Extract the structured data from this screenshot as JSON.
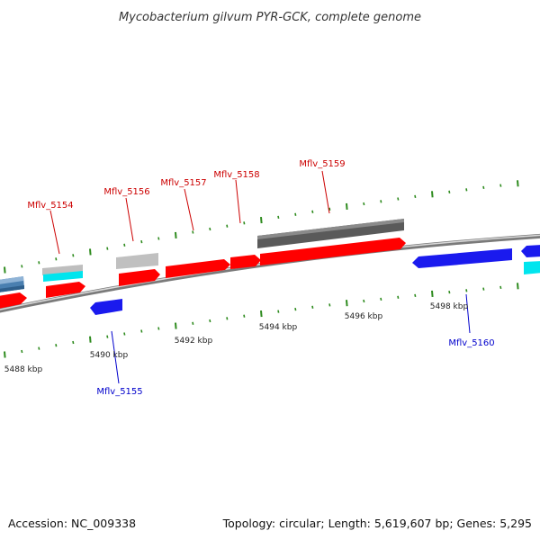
{
  "title": "Mycobacterium gilvum PYR-GCK, complete genome",
  "footer": {
    "accession": "Accession: NC_009338",
    "stats": "Topology: circular; Length: 5,619,607 bp; Genes: 5,295"
  },
  "colors": {
    "backbone": "#8c8c8c",
    "tick": "#2e8b1e",
    "forward_gene": "#ff0000",
    "reverse_gene": "#1a1aee",
    "forward_label": "#cc0000",
    "reverse_label": "#0000cc",
    "cyan_feature": "#00e5ee",
    "steel_feature": "#4a7fb0",
    "light_grey_feature": "#bebebe",
    "dark_grey_feature": "#5a5a5a"
  },
  "scale": {
    "labels": [
      "5488 kbp",
      "5490 kbp",
      "5492 kbp",
      "5494 kbp",
      "5496 kbp",
      "5498 kbp"
    ]
  },
  "genes": [
    {
      "label": "Mflv_5154",
      "strand": "forward"
    },
    {
      "label": "Mflv_5155",
      "strand": "reverse"
    },
    {
      "label": "Mflv_5156",
      "strand": "forward"
    },
    {
      "label": "Mflv_5157",
      "strand": "forward"
    },
    {
      "label": "Mflv_5158",
      "strand": "forward"
    },
    {
      "label": "Mflv_5159",
      "strand": "forward"
    },
    {
      "label": "Mflv_5160",
      "strand": "reverse"
    }
  ]
}
